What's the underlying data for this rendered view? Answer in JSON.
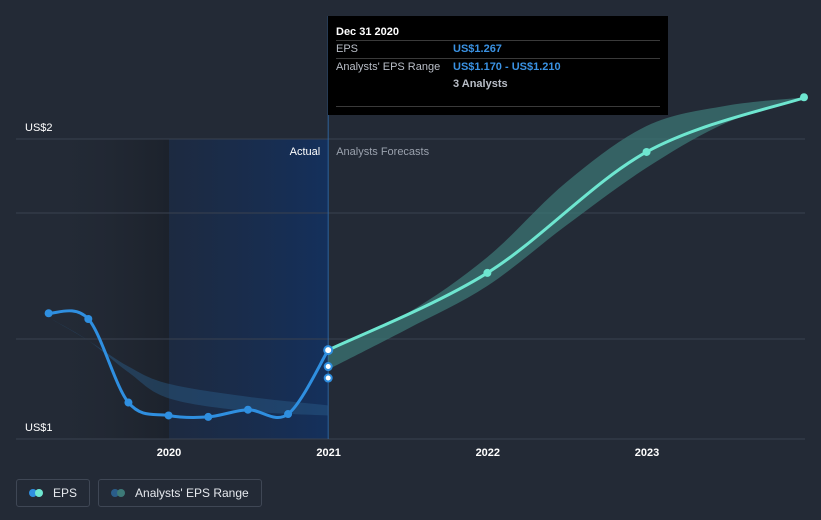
{
  "colors": {
    "background": "#232a36",
    "eps_actual": "#2f8fe0",
    "eps_forecast": "#6ee6d0",
    "range_band": "#3d7a78",
    "grid": "#3a4250",
    "axis_text": "#ffffff",
    "label_text": "#ffffff",
    "forecast_label": "#9aa1ad"
  },
  "region_labels": {
    "actual": "Actual",
    "forecast": "Analysts Forecasts"
  },
  "tooltip": {
    "title": "Dec 31 2020",
    "eps_label": "EPS",
    "eps_value": "US$1.267",
    "range_label": "Analysts' EPS Range",
    "range_value": "US$1.170 - US$1.210",
    "analysts": "3 Analysts"
  },
  "legend": {
    "eps": "EPS",
    "range": "Analysts' EPS Range"
  },
  "chart_data": {
    "type": "line",
    "title": "",
    "xlabel": "",
    "ylabel": "",
    "ylim": [
      1.0,
      2.0
    ],
    "xlim": [
      "2019-03-01",
      "2023-12-31"
    ],
    "y_tick_labels": [
      {
        "value": 2.0,
        "label": "US$2"
      },
      {
        "value": 1.0,
        "label": "US$1"
      }
    ],
    "x_tick_labels": [
      {
        "value": "2020-01-01",
        "label": "2020"
      },
      {
        "value": "2021-01-01",
        "label": "2021"
      },
      {
        "value": "2022-01-01",
        "label": "2022"
      },
      {
        "value": "2023-01-01",
        "label": "2023"
      }
    ],
    "grid": true,
    "legend_position": "bottom-left",
    "series": [
      {
        "name": "EPS",
        "role": "actual",
        "points": [
          {
            "x": "2019-03-31",
            "y": 1.395
          },
          {
            "x": "2019-06-30",
            "y": 1.375
          },
          {
            "x": "2019-09-30",
            "y": 1.085
          },
          {
            "x": "2019-12-31",
            "y": 1.04
          },
          {
            "x": "2020-03-31",
            "y": 1.035
          },
          {
            "x": "2020-06-30",
            "y": 1.06
          },
          {
            "x": "2020-09-30",
            "y": 1.045
          },
          {
            "x": "2020-12-31",
            "y": 1.267
          }
        ]
      },
      {
        "name": "EPS",
        "role": "forecast",
        "points": [
          {
            "x": "2020-12-31",
            "y": 1.267
          },
          {
            "x": "2021-12-31",
            "y": 1.535
          },
          {
            "x": "2022-12-31",
            "y": 1.955
          },
          {
            "x": "2023-12-31",
            "y": 2.145
          }
        ]
      },
      {
        "name": "Analysts' EPS Range",
        "role": "range",
        "points": [
          {
            "x": "2020-12-31",
            "low": 1.2,
            "high": 1.267
          },
          {
            "x": "2021-06-30",
            "low": 1.34,
            "high": 1.395
          },
          {
            "x": "2021-12-31",
            "low": 1.49,
            "high": 1.59
          },
          {
            "x": "2022-06-30",
            "low": 1.7,
            "high": 1.85
          },
          {
            "x": "2022-12-31",
            "low": 1.9,
            "high": 2.045
          },
          {
            "x": "2023-06-30",
            "low": 2.055,
            "high": 2.115
          },
          {
            "x": "2023-12-31",
            "low": 2.145,
            "high": 2.145
          }
        ]
      },
      {
        "name": "Analysts' EPS Range",
        "role": "historical-range",
        "points": [
          {
            "x": "2019-03-31",
            "low": 1.38,
            "high": 1.38
          },
          {
            "x": "2019-06-30",
            "low": 1.3,
            "high": 1.3
          },
          {
            "x": "2019-09-30",
            "low": 1.19,
            "high": 1.21
          },
          {
            "x": "2019-12-31",
            "low": 1.1,
            "high": 1.15
          },
          {
            "x": "2020-06-30",
            "low": 1.055,
            "high": 1.105
          },
          {
            "x": "2020-12-31",
            "low": 1.04,
            "high": 1.075
          }
        ]
      },
      {
        "name": "Analysts' EPS Range",
        "role": "range-markers",
        "points": [
          {
            "x": "2020-12-31",
            "y": 1.21
          },
          {
            "x": "2020-12-31",
            "y": 1.17
          }
        ]
      }
    ]
  }
}
